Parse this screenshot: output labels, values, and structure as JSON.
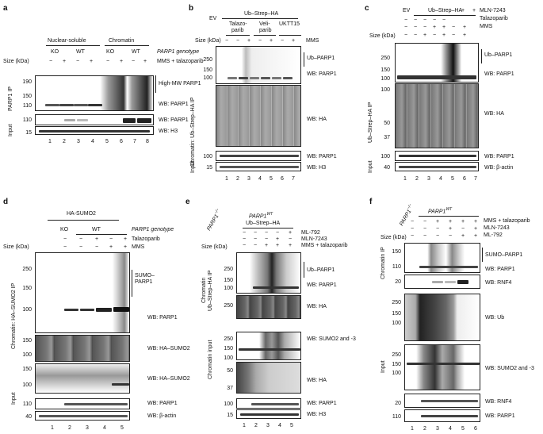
{
  "a": {
    "label": "a",
    "group_nuclear": "Nuclear-soluble",
    "group_chromatin": "Chromatin",
    "genotype_row": [
      "KO",
      "WT",
      "KO",
      "WT"
    ],
    "genotype_label": "PARP1 genotype",
    "treat_label": "MMS + talazoparib",
    "treat_signs": [
      "−",
      "+",
      "−",
      "+",
      "−",
      "+",
      "−",
      "+"
    ],
    "size_label": "Size (kDa)",
    "ip_label": "PARP1 IP",
    "input_label": "Input",
    "ip_sizes": [
      "190",
      "150",
      "110"
    ],
    "input_sizes": [
      "110",
      "15"
    ],
    "annotations": [
      "High-MW PARP1",
      "WB: PARP1",
      "WB: PARP1",
      "WB: H3"
    ],
    "lanes": [
      "1",
      "2",
      "3",
      "4",
      "5",
      "6",
      "7",
      "8"
    ]
  },
  "b": {
    "label": "b",
    "ev": "EV",
    "construct": "Ub–Strep–HA",
    "drugs": [
      "Talazo-\nparib",
      "Veli-\nparib",
      "UKTT15"
    ],
    "drugs_l1": [
      "Talazo-",
      "Veli-",
      "UKTT15"
    ],
    "drugs_l2": [
      "parib",
      "parib",
      ""
    ],
    "treat_label": "MMS",
    "treat_signs": [
      "−",
      "−",
      "+",
      "−",
      "+",
      "−",
      "+"
    ],
    "size_label": "Size (kDa)",
    "ip_label": "Chromatin: Ub–Strep–HA IP",
    "input_label": "Input",
    "ip_sizes": [
      "250",
      "150",
      "100"
    ],
    "input_sizes": [
      "100",
      "15"
    ],
    "annotations": [
      "Ub–PARP1",
      "WB: PARP1",
      "WB: HA",
      "WB: PARP1",
      "WB: H3"
    ],
    "lanes": [
      "1",
      "2",
      "3",
      "4",
      "5",
      "6",
      "7"
    ]
  },
  "c": {
    "label": "c",
    "ev": "EV",
    "construct": "Ub–Strep–HA",
    "rows": [
      {
        "label": "MLN-7243",
        "signs": [
          "−",
          "−",
          "−",
          "−",
          "−",
          "+",
          "+"
        ]
      },
      {
        "label": "Talazoparib",
        "signs": [
          "−",
          "−",
          "−",
          "+",
          "+",
          "−",
          "+"
        ]
      },
      {
        "label": "MMS",
        "signs": [
          "−",
          "−",
          "+",
          "−",
          "+",
          "−",
          "+"
        ]
      }
    ],
    "size_label": "Size (kDa)",
    "ip_label": "Ub–Strep–HA IP",
    "input_label": "Input",
    "ip_sizes": [
      "250",
      "150",
      "100",
      "100",
      "50",
      "37"
    ],
    "input_sizes": [
      "100",
      "40"
    ],
    "annotations": [
      "Ub–PARP1",
      "WB: PARP1",
      "WB: HA",
      "WB: PARP1",
      "WB: β-actin"
    ],
    "lanes": [
      "1",
      "2",
      "3",
      "4",
      "5",
      "6",
      "7"
    ]
  },
  "d": {
    "label": "d",
    "construct": "HA-SUMO2",
    "genotype_label": "PARP1 genotype",
    "genotypes": [
      "KO",
      "WT"
    ],
    "rows": [
      {
        "label": "Talazoparib",
        "signs": [
          "−",
          "−",
          "+",
          "−",
          "+"
        ]
      },
      {
        "label": "MMS",
        "signs": [
          "−",
          "−",
          "−",
          "+",
          "+"
        ]
      }
    ],
    "size_label": "Size (kDa)",
    "ip_label": "Chromatin: HA–SUMO2 IP",
    "input_label": "Input",
    "ip_sizes": [
      "250",
      "150",
      "100"
    ],
    "hasumo_sizes": [
      "150",
      "100"
    ],
    "input_sizes": [
      "150",
      "100",
      "110",
      "40"
    ],
    "annotations": [
      "SUMO–\nPARP1",
      "WB: PARP1",
      "WB: HA–SUMO2",
      "WB: HA–SUMO2",
      "WB: PARP1",
      "WB: β-actin"
    ],
    "sumo_l1": "SUMO–",
    "sumo_l2": "PARP1",
    "lanes": [
      "1",
      "2",
      "3",
      "4",
      "5"
    ]
  },
  "e": {
    "label": "e",
    "ko_label": "PARP1",
    "ko_sup": "−/−",
    "wt_label": "PARP1",
    "wt_sup": "WT",
    "construct": "Ub–Strep–HA",
    "rows": [
      {
        "label": "ML-792",
        "signs": [
          "−",
          "−",
          "−",
          "−",
          "+"
        ]
      },
      {
        "label": "MLN-7243",
        "signs": [
          "−",
          "−",
          "−",
          "+",
          "−"
        ]
      },
      {
        "label": "MMS + talazoparib",
        "signs": [
          "−",
          "−",
          "+",
          "+",
          "+"
        ]
      }
    ],
    "size_label": "Size (kDa)",
    "ip_label": "Chromatin\nUb–Strep–HA IP",
    "ip_l1": "Chromatin",
    "ip_l2": "Ub–Strep–HA IP",
    "input_label": "Chromatin input",
    "ip_sizes": [
      "250",
      "150",
      "100",
      "250"
    ],
    "input_sizes": [
      "250",
      "150",
      "100",
      "50",
      "37",
      "100",
      "15"
    ],
    "annotations": [
      "Ub–PARP1",
      "WB: PARP1",
      "WB: HA",
      "WB: SUMO2 and -3",
      "WB: HA",
      "WB: PARP1",
      "WB: H3"
    ],
    "lanes": [
      "1",
      "2",
      "3",
      "4",
      "5"
    ]
  },
  "f": {
    "label": "f",
    "ko_label": "PARP1",
    "ko_sup": "−/−",
    "wt_label": "PARP1",
    "wt_sup": "WT",
    "rows": [
      {
        "label": "MMS + talazoparib",
        "signs": [
          "−",
          "−",
          "+",
          "+",
          "+",
          "+"
        ]
      },
      {
        "label": "MLN-7243",
        "signs": [
          "−",
          "−",
          "−",
          "+",
          "−",
          "+"
        ]
      },
      {
        "label": "ML-792",
        "signs": [
          "−",
          "−",
          "−",
          "−",
          "+",
          "+"
        ]
      }
    ],
    "size_label": "Size (kDa)",
    "ip_label": "Chromatin IP",
    "input_label": "Input",
    "ip_sizes": [
      "150",
      "110",
      "20"
    ],
    "input_sizes": [
      "250",
      "150",
      "100",
      "250",
      "150",
      "100",
      "20",
      "110"
    ],
    "annotations": [
      "SUMO–PARP1",
      "WB: PARP1",
      "WB: RNF4",
      "WB: Ub",
      "WB: SUMO2 and -3",
      "WB: RNF4",
      "WB: PARP1"
    ],
    "lanes": [
      "1",
      "2",
      "3",
      "4",
      "5",
      "6"
    ]
  }
}
